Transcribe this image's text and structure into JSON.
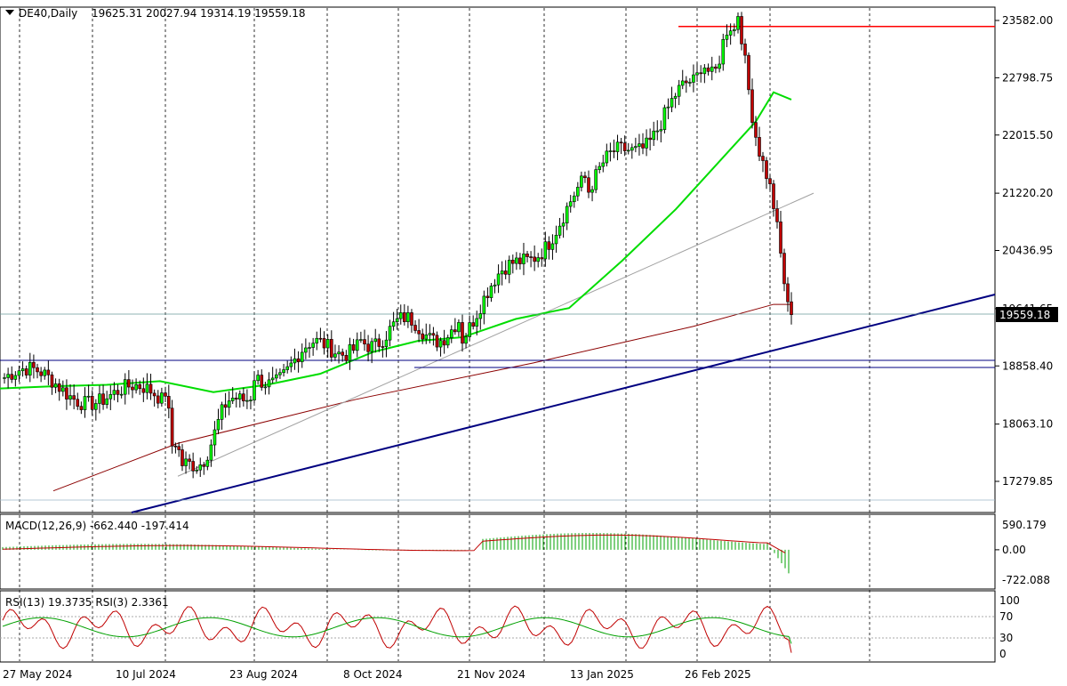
{
  "header": {
    "symbol_label": "DE40,Daily",
    "ohlc": "19625.31 20027.94 19314.19 19559.18"
  },
  "price_axis": {
    "ticks": [
      "23582.00",
      "22798.75",
      "22015.50",
      "21220.20",
      "20436.95",
      "19641.65",
      "18858.40",
      "18063.10",
      "17279.85"
    ],
    "current_price": "19559.18"
  },
  "time_axis": {
    "labels": [
      "27 May 2024",
      "10 Jul 2024",
      "23 Aug 2024",
      "8 Oct 2024",
      "21 Nov 2024",
      "13 Jan 2025",
      "26 Feb 2025"
    ]
  },
  "macd": {
    "label": "MACD(12,26,9) -662.440 -197.414",
    "ticks": [
      "590.179",
      "0.00",
      "-722.088"
    ]
  },
  "rsi": {
    "label": "RSI(13) 19.3735  RSI(3) 2.3361",
    "ticks": [
      "100",
      "70",
      "30",
      "0"
    ]
  },
  "colors": {
    "up": "#00a000",
    "down": "#c00000",
    "ma_fast": "#00dd00",
    "ma_slow": "#8b0000",
    "ma_thin": "#a0a0a0",
    "trendline": "#000080",
    "resistance": "#ff0000",
    "support": "#000080",
    "price_line": "#6a9a9a"
  },
  "chart_data": {
    "type": "candlestick",
    "title": "DE40,Daily",
    "price_range": [
      16960,
      23750
    ],
    "resistance": 23500,
    "support_levels": [
      18980,
      18870
    ],
    "key_points": [
      {
        "label": "27 May 2024",
        "close": 18700
      },
      {
        "label": "10 Jul 2024",
        "close": 18350
      },
      {
        "label": "low Aug 2024",
        "close": 17350
      },
      {
        "label": "23 Aug 2024",
        "close": 18690
      },
      {
        "label": "8 Oct 2024",
        "close": 19300
      },
      {
        "label": "21 Nov 2024",
        "close": 19400
      },
      {
        "label": "13 Jan 2025",
        "close": 21300
      },
      {
        "label": "26 Feb 2025",
        "close": 22700
      },
      {
        "label": "peak Mar 2025",
        "close": 23500
      },
      {
        "label": "last",
        "close": 19559.18
      }
    ],
    "last_ohlc": {
      "open": 19625.31,
      "high": 20027.94,
      "low": 19314.19,
      "close": 19559.18
    },
    "macd": {
      "macd": -662.44,
      "signal": -197.414,
      "ylim": [
        -722.088,
        590.179
      ]
    },
    "rsi": {
      "rsi13": 19.3735,
      "rsi3": 2.3361,
      "levels": [
        30,
        70
      ],
      "ylim": [
        0,
        100
      ]
    }
  }
}
